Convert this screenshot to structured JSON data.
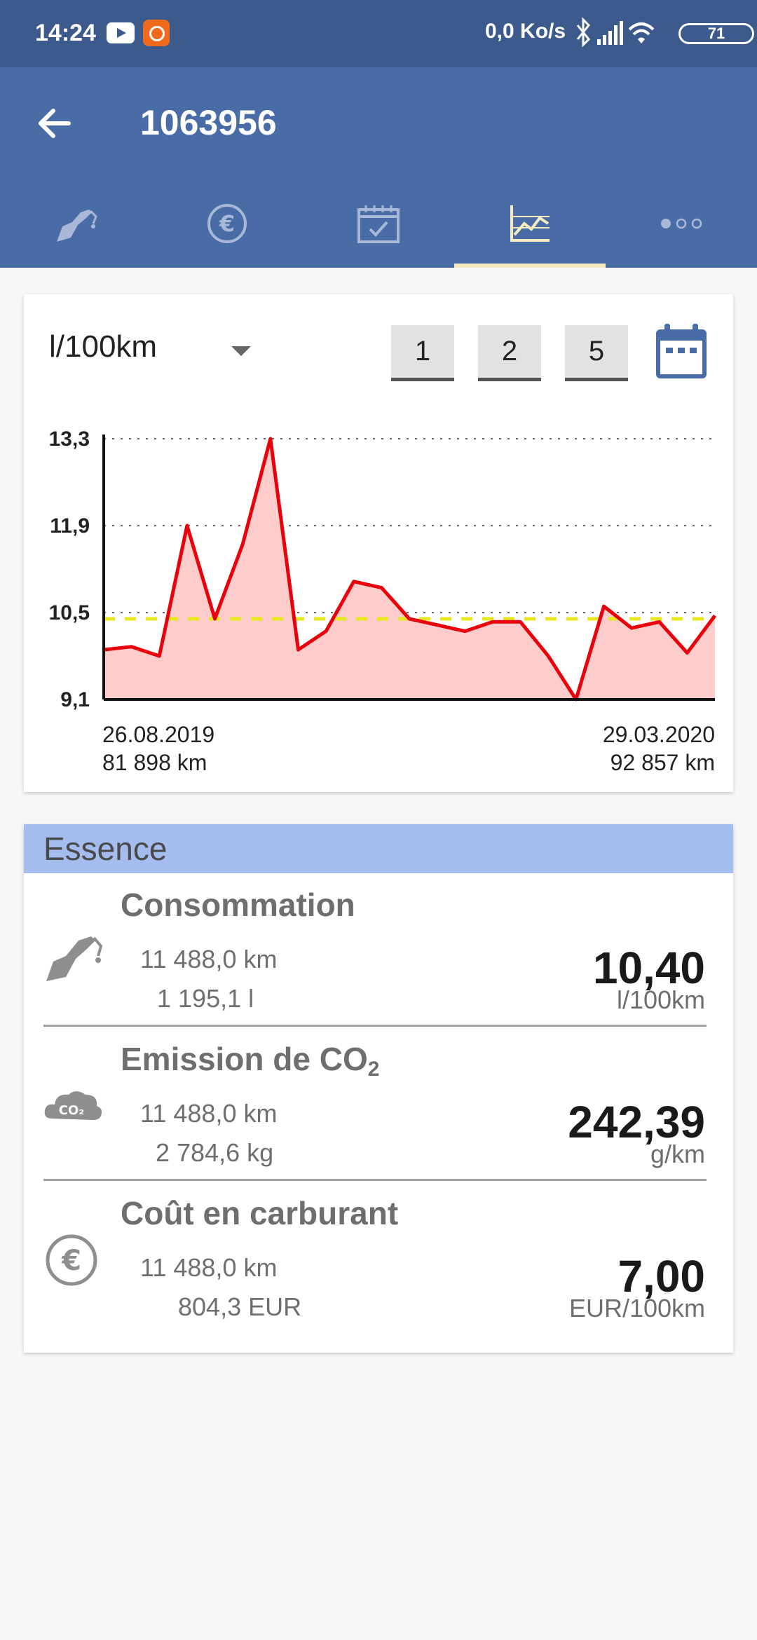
{
  "status_bar": {
    "time": "14:24",
    "data_rate": "0,0 Ko/s",
    "battery": "71",
    "icons": [
      "youtube-icon",
      "app-notification-icon",
      "bluetooth-icon",
      "signal-icon",
      "wifi-icon",
      "battery-icon"
    ]
  },
  "app_bar": {
    "title": "1063956",
    "tabs": [
      {
        "name": "fuel-tab",
        "icon": "fuel-pump-icon"
      },
      {
        "name": "cost-tab",
        "icon": "euro-icon"
      },
      {
        "name": "calendar-tab",
        "icon": "calendar-check-icon"
      },
      {
        "name": "chart-tab",
        "icon": "line-chart-icon",
        "active": true
      },
      {
        "name": "more-tab",
        "icon": "more-dots-icon"
      }
    ],
    "accent_color": "#f5eac0"
  },
  "chart_controls": {
    "unit": "l/100km",
    "year_buttons": [
      "1",
      "2",
      "5"
    ]
  },
  "chart_data": {
    "type": "area",
    "y_ticks": [
      "13,3",
      "11,9",
      "10,5",
      "9,1"
    ],
    "ylim": [
      9.1,
      13.3
    ],
    "grid": true,
    "x_start": {
      "date": "26.08.2019",
      "km": "81 898 km"
    },
    "x_end": {
      "date": "29.03.2020",
      "km": "92 857 km"
    },
    "values": [
      9.9,
      9.95,
      9.8,
      11.9,
      10.4,
      11.6,
      13.3,
      9.9,
      10.2,
      11.0,
      10.9,
      10.4,
      10.3,
      10.2,
      10.35,
      10.35,
      9.8,
      9.1,
      10.6,
      10.25,
      10.35,
      9.85,
      10.45
    ],
    "average": 10.4,
    "line_color": "#e8000a",
    "fill_color": "#ffcccc",
    "average_color": "#e8e820"
  },
  "summary": {
    "section_title": "Essence",
    "rows": [
      {
        "icon": "fuel-pump-icon",
        "title": "Consommation",
        "line1": "11 488,0 km",
        "line2": "1 195,1 l",
        "value": "10,40",
        "unit": "l/100km"
      },
      {
        "icon": "co2-cloud-icon",
        "title_main": "Emission de CO",
        "title_sub": "2",
        "line1": "11 488,0 km",
        "line2": "2 784,6 kg",
        "value": "242,39",
        "unit": "g/km"
      },
      {
        "icon": "euro-icon",
        "title": "Coût en carburant",
        "line1": "11 488,0 km",
        "line2": "804,3 EUR",
        "value": "7,00",
        "unit": "EUR/100km"
      }
    ]
  }
}
